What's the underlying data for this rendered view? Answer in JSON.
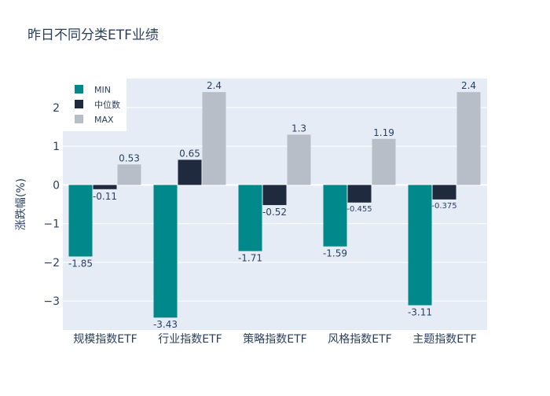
{
  "chart_data": {
    "type": "bar",
    "title": "昨日不同分类ETF业绩",
    "xlabel": "",
    "ylabel": "涨跌幅(%)",
    "categories": [
      "规模指数ETF",
      "行业指数ETF",
      "策略指数ETF",
      "风格指数ETF",
      "主题指数ETF"
    ],
    "series": [
      {
        "name": "MIN",
        "values": [
          -1.85,
          -3.43,
          -1.71,
          -1.59,
          -3.11
        ],
        "labels": [
          "-1.85",
          "-3.43",
          "-1.71",
          "-1.59",
          "-3.11"
        ]
      },
      {
        "name": "中位数",
        "values": [
          -0.11,
          0.65,
          -0.52,
          -0.455,
          -0.375
        ],
        "labels": [
          "-0.11",
          "0.65",
          "-0.52",
          "-0.455",
          "-0.375"
        ]
      },
      {
        "name": "MAX",
        "values": [
          0.53,
          2.4,
          1.3,
          1.19,
          2.4
        ],
        "labels": [
          "0.53",
          "2.4",
          "1.3",
          "1.19",
          "2.4"
        ]
      }
    ],
    "ylim": [
      -3.75,
      2.75
    ],
    "yticks": [
      -3,
      -2,
      -1,
      0,
      1,
      2
    ],
    "ytick_labels": [
      "−3",
      "−2",
      "−1",
      "0",
      "1",
      "2"
    ],
    "grid": true,
    "legend_position": "top-left",
    "colors": {
      "MIN": "#00888a",
      "中位数": "#1f2a3e",
      "MAX": "#b8bec7",
      "plot_bg": "#e5ecf6",
      "grid": "#ffffff",
      "text": "#2a3f5f"
    }
  }
}
